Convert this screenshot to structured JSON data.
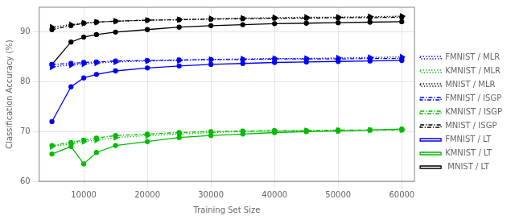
{
  "chart_data": {
    "type": "line",
    "xlabel": "Training Set Size",
    "ylabel": "Classification Accuracy (%)",
    "x": [
      5000,
      8000,
      10000,
      12000,
      15000,
      20000,
      25000,
      30000,
      35000,
      40000,
      45000,
      50000,
      55000,
      60000
    ],
    "series": [
      {
        "name": "FMNIST / MLR",
        "color": "#0000ff",
        "marker": "triangle-right",
        "line_style": "dotted",
        "values": [
          83.0,
          83.4,
          83.6,
          83.8,
          84.0,
          84.2,
          84.3,
          84.5,
          84.6,
          84.7,
          84.7,
          84.8,
          84.9,
          85.0
        ]
      },
      {
        "name": "KMNIST / MLR",
        "color": "#00bb00",
        "marker": "triangle-right",
        "line_style": "dotted",
        "values": [
          67.0,
          67.5,
          68.0,
          68.3,
          68.8,
          69.2,
          69.5,
          69.8,
          70.0,
          70.1,
          70.2,
          70.2,
          70.3,
          70.4
        ]
      },
      {
        "name": "MNIST / MLR",
        "color": "#000000",
        "marker": "triangle-right",
        "line_style": "dotted",
        "values": [
          91.0,
          91.5,
          91.8,
          92.0,
          92.2,
          92.4,
          92.5,
          92.7,
          92.8,
          92.9,
          93.0,
          93.0,
          93.1,
          93.2
        ]
      },
      {
        "name": "FMNIST / ISGP",
        "color": "#0000ff",
        "marker": "circle",
        "line_style": "dashdot",
        "values": [
          83.5,
          83.7,
          83.9,
          84.0,
          84.2,
          84.3,
          84.4,
          84.5,
          84.5,
          84.6,
          84.6,
          84.6,
          84.7,
          84.7
        ]
      },
      {
        "name": "KMNIST / ISGP",
        "color": "#00bb00",
        "marker": "circle",
        "line_style": "dashdot",
        "values": [
          67.2,
          67.8,
          68.3,
          68.7,
          69.2,
          69.5,
          69.8,
          70.0,
          70.1,
          70.2,
          70.2,
          70.3,
          70.3,
          70.3
        ]
      },
      {
        "name": "MNIST / ISGP",
        "color": "#000000",
        "marker": "circle",
        "line_style": "dashdot",
        "values": [
          90.5,
          91.3,
          91.8,
          92.0,
          92.2,
          92.4,
          92.5,
          92.6,
          92.7,
          92.8,
          92.8,
          92.9,
          92.9,
          93.0
        ]
      },
      {
        "name": "FMNIST / LT",
        "color": "#0000ff",
        "marker": "circle",
        "line_style": "solid",
        "values": [
          72.0,
          79.0,
          80.8,
          81.5,
          82.2,
          82.8,
          83.2,
          83.5,
          83.7,
          83.9,
          84.0,
          84.1,
          84.2,
          84.3
        ]
      },
      {
        "name": "KMNIST / LT",
        "color": "#00bb00",
        "marker": "circle",
        "line_style": "solid",
        "values": [
          65.5,
          67.0,
          63.5,
          65.8,
          67.2,
          68.0,
          68.8,
          69.2,
          69.5,
          69.8,
          70.0,
          70.1,
          70.3,
          70.5
        ]
      },
      {
        "name": " MNIST / LT",
        "color": "#000000",
        "marker": "circle",
        "line_style": "solid",
        "values": [
          83.5,
          88.0,
          89.0,
          89.5,
          90.0,
          90.5,
          91.0,
          91.3,
          91.5,
          91.7,
          91.8,
          91.9,
          92.0,
          92.1
        ]
      }
    ],
    "xlim": [
      3000,
      62000
    ],
    "xticks": [
      10000,
      20000,
      30000,
      40000,
      50000,
      60000
    ],
    "ylim": [
      60,
      95
    ],
    "yticks": [
      60,
      70,
      80,
      90
    ],
    "grid": true,
    "legend": "right"
  }
}
